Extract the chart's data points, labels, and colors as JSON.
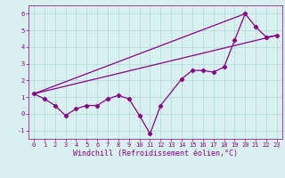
{
  "zigzag_x": [
    0,
    1,
    2,
    3,
    4,
    5,
    6,
    7,
    8,
    9,
    10,
    11,
    12,
    14,
    15,
    16,
    17,
    18,
    19,
    20,
    21,
    22,
    23
  ],
  "zigzag_y": [
    1.2,
    0.9,
    0.5,
    -0.1,
    0.3,
    0.5,
    0.5,
    0.9,
    1.1,
    0.9,
    -0.1,
    -1.2,
    0.5,
    2.1,
    2.6,
    2.6,
    2.5,
    2.8,
    4.4,
    6.0,
    5.2,
    4.6,
    4.7
  ],
  "line1_x": [
    0,
    23
  ],
  "line1_y": [
    1.2,
    4.7
  ],
  "line2_x": [
    0,
    20
  ],
  "line2_y": [
    1.2,
    6.0
  ],
  "color": "#880088",
  "bg_color": "#d8f0f0",
  "grid_color": "#b0d8d8",
  "xlim": [
    -0.5,
    23.5
  ],
  "ylim": [
    -1.5,
    6.5
  ],
  "xticks": [
    0,
    1,
    2,
    3,
    4,
    5,
    6,
    7,
    8,
    9,
    10,
    11,
    12,
    13,
    14,
    15,
    16,
    17,
    18,
    19,
    20,
    21,
    22,
    23
  ],
  "yticks": [
    -1,
    0,
    1,
    2,
    3,
    4,
    5,
    6
  ],
  "xlabel": "Windchill (Refroidissement éolien,°C)",
  "marker": "D",
  "marker_size": 2.2,
  "linewidth": 0.9,
  "tick_fontsize": 5.0,
  "xlabel_fontsize": 6.0
}
